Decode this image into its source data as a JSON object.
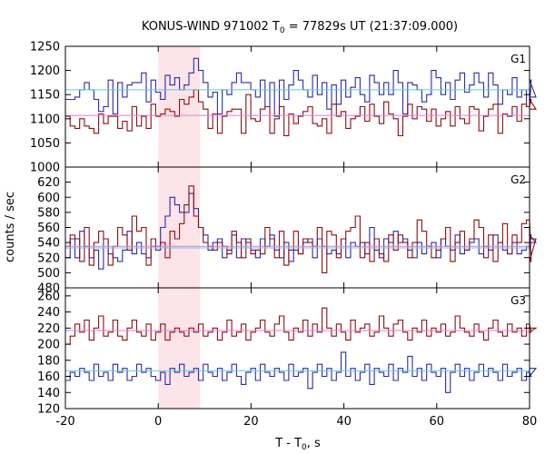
{
  "title_parts": {
    "pre": "KONUS-WIND 971002 T",
    "sub": "0",
    "post": " = 77829s UT (21:37:09.000)"
  },
  "xlabel_parts": {
    "pre": "T - T",
    "sub": "0",
    "post": ", s"
  },
  "ylabel": "counts / sec",
  "colors": {
    "blue_series": "#2b2ba6",
    "red_series": "#8b0f12",
    "blue_fit": "#5fc9e8",
    "red_fit": "#e87ad2",
    "highlight": "#fde4e8",
    "axis": "#000000"
  },
  "chart_data": [
    {
      "type": "line",
      "panel_label": "G1",
      "xlim": [
        -20,
        80
      ],
      "ylim": [
        1000,
        1250
      ],
      "x_ticks": [
        -20,
        0,
        20,
        40,
        60,
        80
      ],
      "x_tick_labels": [
        "-20",
        "0",
        "20",
        "40",
        "60",
        "80"
      ],
      "y_ticks": [
        1000,
        1050,
        1100,
        1150,
        1200,
        1250
      ],
      "y_tick_labels": [
        "1000",
        "1050",
        "1100",
        "1150",
        "1200",
        "1250"
      ],
      "highlight_x": [
        0,
        9
      ],
      "grid": false,
      "bin_start": -20,
      "bin_width": 1.024,
      "series": [
        {
          "color_key": "blue_series",
          "values": [
            1140,
            1140,
            1145,
            1160,
            1175,
            1160,
            1140,
            1115,
            1125,
            1180,
            1110,
            1175,
            1145,
            1170,
            1175,
            1175,
            1195,
            1135,
            1180,
            1155,
            1140,
            1190,
            1170,
            1185,
            1160,
            1170,
            1195,
            1225,
            1200,
            1175,
            1145,
            1155,
            1110,
            1160,
            1150,
            1175,
            1195,
            1175,
            1175,
            1160,
            1145,
            1180,
            1125,
            1175,
            1105,
            1180,
            1140,
            1170,
            1200,
            1180,
            1160,
            1145,
            1190,
            1150,
            1175,
            1120,
            1170,
            1130,
            1180,
            1145,
            1165,
            1185,
            1150,
            1135,
            1190,
            1175,
            1150,
            1175,
            1150,
            1200,
            1175,
            1110,
            1175,
            1170,
            1160,
            1135,
            1150,
            1200,
            1185,
            1150,
            1175,
            1140,
            1180,
            1195,
            1155,
            1170,
            1195,
            1175,
            1145,
            1195,
            1170,
            1130,
            1160,
            1150,
            1185,
            1145,
            1160,
            1125,
            1180,
            1145
          ],
          "fit": {
            "color_key": "blue_fit",
            "y": 1160
          }
        },
        {
          "color_key": "red_series",
          "values": [
            1105,
            1085,
            1080,
            1100,
            1085,
            1080,
            1070,
            1110,
            1090,
            1105,
            1105,
            1080,
            1095,
            1075,
            1125,
            1085,
            1105,
            1080,
            1130,
            1105,
            1110,
            1120,
            1115,
            1105,
            1140,
            1130,
            1145,
            1160,
            1135,
            1120,
            1080,
            1110,
            1070,
            1105,
            1115,
            1120,
            1120,
            1070,
            1150,
            1100,
            1095,
            1120,
            1125,
            1070,
            1100,
            1125,
            1065,
            1110,
            1090,
            1105,
            1115,
            1125,
            1090,
            1085,
            1100,
            1070,
            1130,
            1105,
            1115,
            1080,
            1100,
            1105,
            1125,
            1095,
            1130,
            1105,
            1090,
            1135,
            1110,
            1100,
            1065,
            1105,
            1130,
            1100,
            1125,
            1120,
            1095,
            1120,
            1085,
            1100,
            1115,
            1085,
            1125,
            1100,
            1090,
            1125,
            1120,
            1075,
            1105,
            1120,
            1130,
            1070,
            1110,
            1105,
            1125,
            1095,
            1130,
            1125,
            1140,
            1120
          ],
          "fit": {
            "color_key": "red_fit",
            "y": 1107
          }
        }
      ]
    },
    {
      "type": "line",
      "panel_label": "G2",
      "xlim": [
        -20,
        80
      ],
      "ylim": [
        480,
        640
      ],
      "x_ticks": [
        -20,
        0,
        20,
        40,
        60,
        80
      ],
      "x_tick_labels": [
        "-20",
        "0",
        "20",
        "40",
        "60",
        "80"
      ],
      "y_ticks": [
        480,
        500,
        520,
        540,
        560,
        580,
        600,
        620
      ],
      "y_tick_labels": [
        "480",
        "500",
        "520",
        "540",
        "560",
        "580",
        "600",
        "620"
      ],
      "highlight_x": [
        0,
        9
      ],
      "grid": false,
      "bin_start": -20,
      "bin_width": 1.024,
      "series": [
        {
          "color_key": "blue_series",
          "values": [
            520,
            545,
            520,
            555,
            535,
            520,
            530,
            505,
            545,
            525,
            520,
            515,
            530,
            555,
            525,
            540,
            525,
            520,
            535,
            530,
            560,
            575,
            600,
            590,
            580,
            580,
            605,
            585,
            560,
            550,
            530,
            540,
            545,
            520,
            530,
            550,
            520,
            545,
            540,
            530,
            520,
            545,
            535,
            550,
            530,
            520,
            540,
            515,
            530,
            525,
            540,
            545,
            520,
            545,
            535,
            525,
            530,
            525,
            545,
            520,
            540,
            535,
            540,
            525,
            560,
            530,
            520,
            545,
            540,
            555,
            540,
            545,
            530,
            520,
            540,
            525,
            535,
            540,
            520,
            545,
            535,
            530,
            550,
            525,
            530,
            540,
            545,
            525,
            535,
            530,
            550,
            540,
            530,
            525,
            540,
            525,
            530,
            535,
            550,
            540
          ],
          "fit": {
            "color_key": "blue_fit",
            "y": 533
          }
        },
        {
          "color_key": "red_series",
          "values": [
            535,
            550,
            545,
            515,
            560,
            510,
            540,
            555,
            545,
            510,
            535,
            560,
            550,
            530,
            575,
            555,
            560,
            510,
            545,
            535,
            540,
            520,
            555,
            545,
            565,
            590,
            615,
            575,
            560,
            540,
            535,
            530,
            540,
            535,
            525,
            555,
            540,
            520,
            545,
            525,
            530,
            525,
            560,
            545,
            520,
            555,
            510,
            530,
            555,
            525,
            545,
            540,
            535,
            560,
            500,
            555,
            550,
            520,
            545,
            555,
            560,
            575,
            520,
            540,
            515,
            545,
            525,
            515,
            550,
            530,
            550,
            540,
            520,
            540,
            570,
            555,
            535,
            520,
            530,
            545,
            560,
            515,
            540,
            555,
            530,
            545,
            570,
            560,
            520,
            550,
            515,
            540,
            565,
            525,
            550,
            540,
            565,
            570,
            515,
            545
          ],
          "fit": {
            "color_key": "red_fit",
            "y": 535
          }
        }
      ]
    },
    {
      "type": "line",
      "panel_label": "G3",
      "xlim": [
        -20,
        80
      ],
      "ylim": [
        120,
        270
      ],
      "x_ticks": [
        -20,
        0,
        20,
        40,
        60,
        80
      ],
      "x_tick_labels": [
        "-20",
        "0",
        "20",
        "40",
        "60",
        "80"
      ],
      "y_ticks": [
        120,
        140,
        160,
        180,
        200,
        220,
        240,
        260
      ],
      "y_tick_labels": [
        "120",
        "140",
        "160",
        "180",
        "200",
        "220",
        "240",
        "260"
      ],
      "highlight_x": [
        0,
        9
      ],
      "grid": false,
      "bin_start": -20,
      "bin_width": 1.024,
      "series": [
        {
          "color_key": "blue_series",
          "values": [
            155,
            165,
            160,
            170,
            165,
            155,
            175,
            160,
            165,
            155,
            175,
            165,
            170,
            155,
            160,
            175,
            165,
            170,
            160,
            155,
            165,
            150,
            170,
            165,
            175,
            160,
            165,
            170,
            155,
            175,
            165,
            160,
            170,
            155,
            165,
            175,
            160,
            150,
            165,
            170,
            155,
            175,
            165,
            160,
            170,
            165,
            155,
            175,
            160,
            165,
            170,
            145,
            165,
            175,
            160,
            170,
            155,
            165,
            190,
            160,
            170,
            155,
            165,
            175,
            150,
            170,
            165,
            160,
            175,
            155,
            170,
            165,
            185,
            160,
            170,
            155,
            175,
            165,
            160,
            170,
            140,
            165,
            175,
            160,
            170,
            155,
            165,
            175,
            160,
            170,
            165,
            155,
            175,
            160,
            165,
            170,
            155,
            165,
            160,
            170
          ],
          "fit": {
            "color_key": "blue_fit",
            "y": 167
          }
        },
        {
          "color_key": "red_series",
          "values": [
            200,
            210,
            225,
            215,
            230,
            205,
            220,
            235,
            210,
            215,
            230,
            210,
            205,
            220,
            230,
            215,
            210,
            225,
            205,
            215,
            225,
            205,
            215,
            220,
            215,
            210,
            220,
            215,
            225,
            210,
            215,
            220,
            205,
            215,
            230,
            210,
            215,
            225,
            205,
            215,
            220,
            230,
            215,
            210,
            225,
            235,
            215,
            205,
            220,
            215,
            230,
            210,
            225,
            215,
            245,
            220,
            210,
            225,
            215,
            205,
            230,
            215,
            220,
            225,
            210,
            215,
            235,
            220,
            210,
            225,
            230,
            215,
            205,
            220,
            215,
            230,
            210,
            220,
            215,
            225,
            210,
            215,
            235,
            220,
            215,
            210,
            225,
            215,
            205,
            220,
            230,
            215,
            210,
            225,
            215,
            220,
            210,
            225,
            215,
            220
          ],
          "fit": {
            "color_key": "red_fit",
            "y": 217
          }
        }
      ]
    }
  ]
}
